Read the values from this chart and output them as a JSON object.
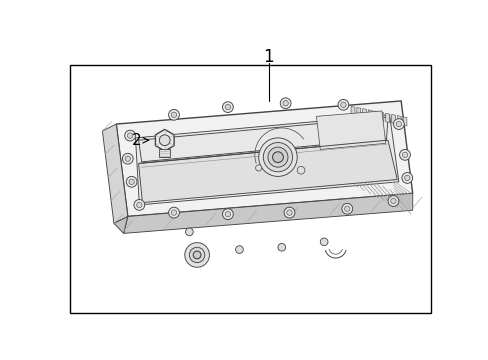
{
  "background_color": "#ffffff",
  "border_color": "#000000",
  "line_color": "#444444",
  "label1": "1",
  "label2": "2",
  "figsize": [
    4.89,
    3.6
  ],
  "dpi": 100,
  "pan_face_color": "#f0f0f0",
  "pan_side_color": "#d8d8d8",
  "pan_dark_color": "#c8c8c8",
  "inner_color": "#e8e8e8",
  "floor_color": "#ebebeb"
}
